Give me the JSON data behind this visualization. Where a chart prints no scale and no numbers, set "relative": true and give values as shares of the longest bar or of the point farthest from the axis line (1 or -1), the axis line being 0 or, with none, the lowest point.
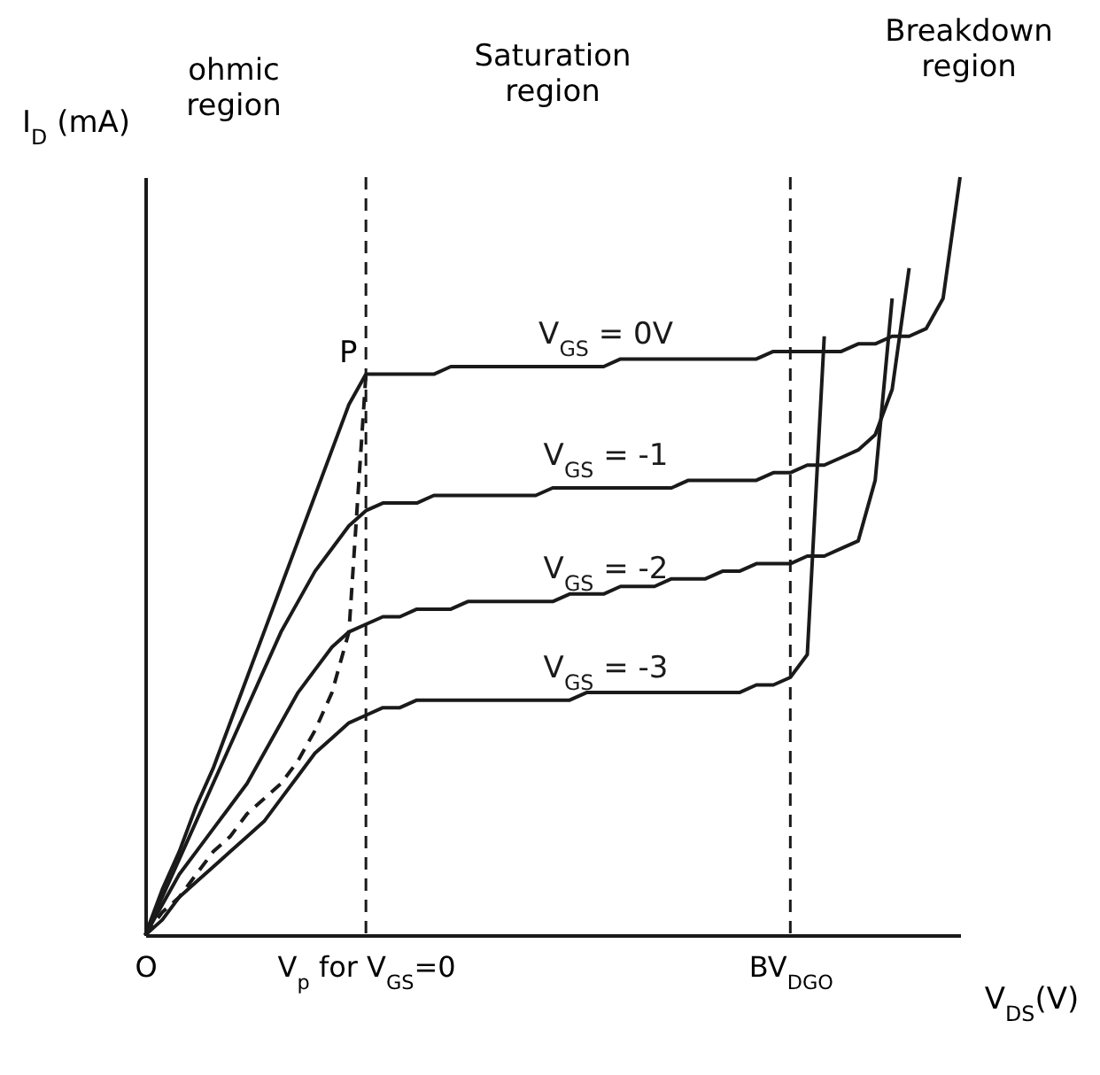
{
  "chart_data": {
    "type": "line",
    "relative": true,
    "ylabel": "I$_{D}$ (mA)",
    "xlabel": "V$_{DS}$(V)",
    "categories": [
      "O",
      null,
      null,
      null,
      null,
      null,
      null,
      null,
      null,
      null,
      null,
      null,
      null,
      "V$_{p}$ for V$_{GS}$=0",
      null,
      null,
      null,
      null,
      null,
      null,
      null,
      null,
      null,
      null,
      null,
      null,
      null,
      null,
      null,
      null,
      null,
      null,
      null,
      null,
      null,
      null,
      null,
      null,
      "BV$_{DGO}$",
      null,
      null,
      null,
      null,
      null,
      null,
      null,
      null,
      null,
      null
    ],
    "line_style": "solid",
    "marker": "none",
    "legend": false,
    "series": [
      {
        "name": "V$_{GS}$ = 0V",
        "color": "#1a1a1a",
        "values": [
          0,
          0.06,
          0.11,
          0.17,
          0.22,
          0.28,
          0.34,
          0.4,
          0.46,
          0.52,
          0.58,
          0.64,
          0.7,
          0.74,
          0.74,
          0.74,
          0.74,
          0.74,
          0.75,
          0.75,
          0.75,
          0.75,
          0.75,
          0.75,
          0.75,
          0.75,
          0.75,
          0.75,
          0.76,
          0.76,
          0.76,
          0.76,
          0.76,
          0.76,
          0.76,
          0.76,
          0.76,
          0.77,
          0.77,
          0.77,
          0.77,
          0.77,
          0.78,
          0.78,
          0.79,
          0.79,
          0.8,
          0.84,
          1.0
        ]
      },
      {
        "name": "V$_{GS}$ = -1",
        "color": "#1a1a1a",
        "values": [
          0,
          0.05,
          0.1,
          0.15,
          0.2,
          0.25,
          0.3,
          0.35,
          0.4,
          0.44,
          0.48,
          0.51,
          0.54,
          0.56,
          0.57,
          0.57,
          0.57,
          0.58,
          0.58,
          0.58,
          0.58,
          0.58,
          0.58,
          0.58,
          0.59,
          0.59,
          0.59,
          0.59,
          0.59,
          0.59,
          0.59,
          0.59,
          0.6,
          0.6,
          0.6,
          0.6,
          0.6,
          0.61,
          0.61,
          0.62,
          0.62,
          0.63,
          0.64,
          0.66,
          0.72,
          0.88,
          null,
          null,
          null
        ]
      },
      {
        "name": "V$_{GS}$ = -2",
        "color": "#1a1a1a",
        "values": [
          0,
          0.04,
          0.08,
          0.11,
          0.14,
          0.17,
          0.2,
          0.24,
          0.28,
          0.32,
          0.35,
          0.38,
          0.4,
          0.41,
          0.42,
          0.42,
          0.43,
          0.43,
          0.43,
          0.44,
          0.44,
          0.44,
          0.44,
          0.44,
          0.44,
          0.45,
          0.45,
          0.45,
          0.46,
          0.46,
          0.46,
          0.47,
          0.47,
          0.47,
          0.48,
          0.48,
          0.49,
          0.49,
          0.49,
          0.5,
          0.5,
          0.51,
          0.52,
          0.6,
          0.84,
          null,
          null,
          null,
          null
        ]
      },
      {
        "name": "V$_{GS}$ = -3",
        "color": "#1a1a1a",
        "values": [
          0,
          0.02,
          0.05,
          0.07,
          0.09,
          0.11,
          0.13,
          0.15,
          0.18,
          0.21,
          0.24,
          0.26,
          0.28,
          0.29,
          0.3,
          0.3,
          0.31,
          0.31,
          0.31,
          0.31,
          0.31,
          0.31,
          0.31,
          0.31,
          0.31,
          0.31,
          0.32,
          0.32,
          0.32,
          0.32,
          0.32,
          0.32,
          0.32,
          0.32,
          0.32,
          0.32,
          0.33,
          0.33,
          0.34,
          0.37,
          0.79,
          null,
          null,
          null,
          null,
          null,
          null,
          null,
          null
        ]
      },
      {
        "color": "#1a1a1a",
        "line_style": "dashed",
        "values": [
          0,
          0.03,
          0.05,
          0.08,
          0.11,
          0.13,
          0.16,
          0.18,
          0.2,
          0.23,
          0.27,
          0.32,
          0.4,
          0.74,
          null,
          null,
          null,
          null,
          null,
          null,
          null,
          null,
          null,
          null,
          null,
          null,
          null,
          null,
          null,
          null,
          null,
          null,
          null,
          null,
          null,
          null,
          null,
          null,
          null,
          null,
          null,
          null,
          null,
          null,
          null,
          null,
          null,
          null,
          null
        ]
      }
    ],
    "ref_lines": [
      {
        "axis": "x",
        "value": "V$_{p}$ for V$_{GS}$=0",
        "line_style": "dashed",
        "color": "#1a1a1a"
      },
      {
        "axis": "x",
        "value": "BV$_{DGO}$",
        "line_style": "dashed",
        "color": "#1a1a1a"
      }
    ],
    "annotations": [
      "ohmic region",
      "Saturation region",
      "Breakdown region",
      {
        "text": "P",
        "x": "V$_{p}$ for V$_{GS}$=0",
        "y": 0.74
      }
    ]
  }
}
